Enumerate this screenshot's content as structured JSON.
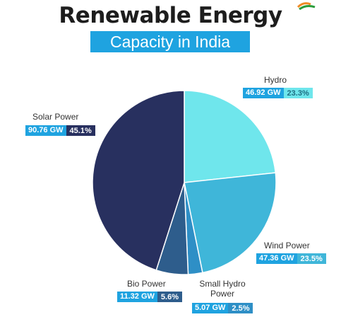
{
  "colors": {
    "accent": "#1fa3e0",
    "solar": "#28305f",
    "hydro": "#6fe6ec",
    "wind": "#3fb6d9",
    "small_hydro": "#2e8fc6",
    "bio": "#2e5d8c"
  },
  "chart_data": {
    "type": "pie",
    "title": "Renewable Energy",
    "subtitle": "Capacity in India",
    "slices": [
      {
        "name": "Hydro",
        "value": 46.92,
        "value_label": "46.92 GW",
        "percent": 23.3,
        "percent_label": "23.3%"
      },
      {
        "name": "Wind Power",
        "value": 47.36,
        "value_label": "47.36 GW",
        "percent": 23.5,
        "percent_label": "23.5%"
      },
      {
        "name": "Small Hydro Power",
        "value": 5.07,
        "value_label": "5.07 GW",
        "percent": 2.5,
        "percent_label": "2.5%"
      },
      {
        "name": "Bio Power",
        "value": 11.32,
        "value_label": "11.32 GW",
        "percent": 5.6,
        "percent_label": "5.6%"
      },
      {
        "name": "Solar Power",
        "value": 90.76,
        "value_label": "90.76 GW",
        "percent": 45.1,
        "percent_label": "45.1%"
      }
    ]
  }
}
